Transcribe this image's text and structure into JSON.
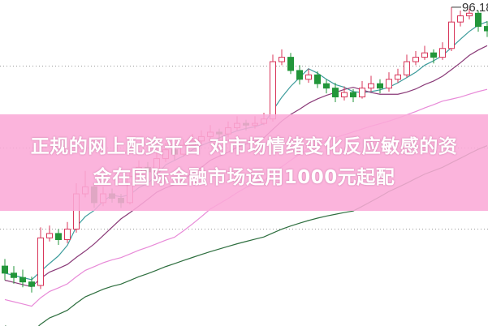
{
  "chart_data": {
    "type": "candlestick",
    "ylim": [
      60,
      97
    ],
    "grid": "dotted horizontal",
    "gridlines": [
      89.5,
      80.2,
      71
    ],
    "colors": {
      "up": "#d8355a",
      "down": "#22963a",
      "ma5": "#3d9c9c",
      "ma10": "#8a3a78",
      "ma20": "#e88ad8",
      "ma60": "#2d6e3e",
      "grid": "#999999"
    },
    "max_label": "96.18",
    "candles": [
      [
        66.8,
        67.6,
        65.2,
        66
      ],
      [
        66,
        66.8,
        64.8,
        65.5
      ],
      [
        65.5,
        66.4,
        64.4,
        65
      ],
      [
        65,
        65.6,
        63.8,
        64.5
      ],
      [
        64.6,
        71.2,
        64.2,
        70
      ],
      [
        70,
        71.4,
        69.6,
        70.5
      ],
      [
        70.5,
        71,
        69.2,
        69.8
      ],
      [
        69.8,
        71.8,
        69.4,
        71
      ],
      [
        71,
        76.2,
        70.6,
        75
      ],
      [
        75,
        77.6,
        74.6,
        75.8
      ],
      [
        75.8,
        76.2,
        73.4,
        74
      ],
      [
        74,
        75.8,
        73.6,
        75
      ],
      [
        75,
        75.6,
        74,
        74.5
      ],
      [
        74.5,
        75,
        73.4,
        74
      ],
      [
        74,
        77.8,
        73.8,
        77
      ],
      [
        77,
        78.8,
        76.6,
        78
      ],
      [
        78,
        78.6,
        77,
        77.5
      ],
      [
        77.5,
        79.8,
        77.2,
        79
      ],
      [
        79,
        80.8,
        78.6,
        80
      ],
      [
        80,
        80.4,
        78.8,
        79.5
      ],
      [
        79.5,
        81.2,
        79.2,
        80.5
      ],
      [
        80.5,
        81.8,
        80.2,
        81
      ],
      [
        81,
        82.2,
        80.6,
        81.5
      ],
      [
        81.5,
        82.8,
        81,
        82
      ],
      [
        82,
        82.4,
        81.2,
        81.8
      ],
      [
        81.8,
        83.2,
        81.4,
        82.5
      ],
      [
        82.5,
        83.8,
        82.2,
        83
      ],
      [
        83,
        83.4,
        82.2,
        82.8
      ],
      [
        82.8,
        83.8,
        82.4,
        83
      ],
      [
        83,
        84.2,
        82.8,
        83.5
      ],
      [
        83.5,
        90.8,
        83.2,
        90
      ],
      [
        90,
        91.4,
        89.6,
        90.5
      ],
      [
        90.5,
        91,
        88.6,
        89
      ],
      [
        89,
        89.6,
        87.4,
        88
      ],
      [
        88,
        89.2,
        87.6,
        88.5
      ],
      [
        88.5,
        88.9,
        87,
        87.5
      ],
      [
        87.5,
        88,
        86.4,
        87
      ],
      [
        87,
        87.6,
        85.4,
        86
      ],
      [
        86,
        87.2,
        85.6,
        86.5
      ],
      [
        86.5,
        86.9,
        85.4,
        86
      ],
      [
        86,
        87.8,
        85.8,
        87
      ],
      [
        87,
        88.4,
        86.6,
        87.5
      ],
      [
        87.5,
        88,
        86.4,
        87
      ],
      [
        87,
        88.8,
        86.6,
        88
      ],
      [
        88,
        89.2,
        87.6,
        88.5
      ],
      [
        88.5,
        90.8,
        88.2,
        90
      ],
      [
        90,
        91.2,
        89.6,
        90.5
      ],
      [
        90.5,
        91.8,
        90.2,
        91
      ],
      [
        91,
        91.4,
        89.8,
        90.5
      ],
      [
        90.5,
        92.2,
        90.2,
        91.5
      ],
      [
        91.5,
        96.18,
        91.2,
        94.5
      ],
      [
        94.5,
        95.8,
        94,
        95.2
      ],
      [
        95.2,
        96,
        94.8,
        95.5
      ],
      [
        95.5,
        95.8,
        93.4,
        94
      ],
      [
        94,
        94.6,
        92.8,
        93.5
      ]
    ]
  },
  "banner": {
    "line1": "正规的网上配资平台 对市场情绪变化反应敏感的资",
    "line2": "金在国际金融市场运用1000元起配"
  }
}
